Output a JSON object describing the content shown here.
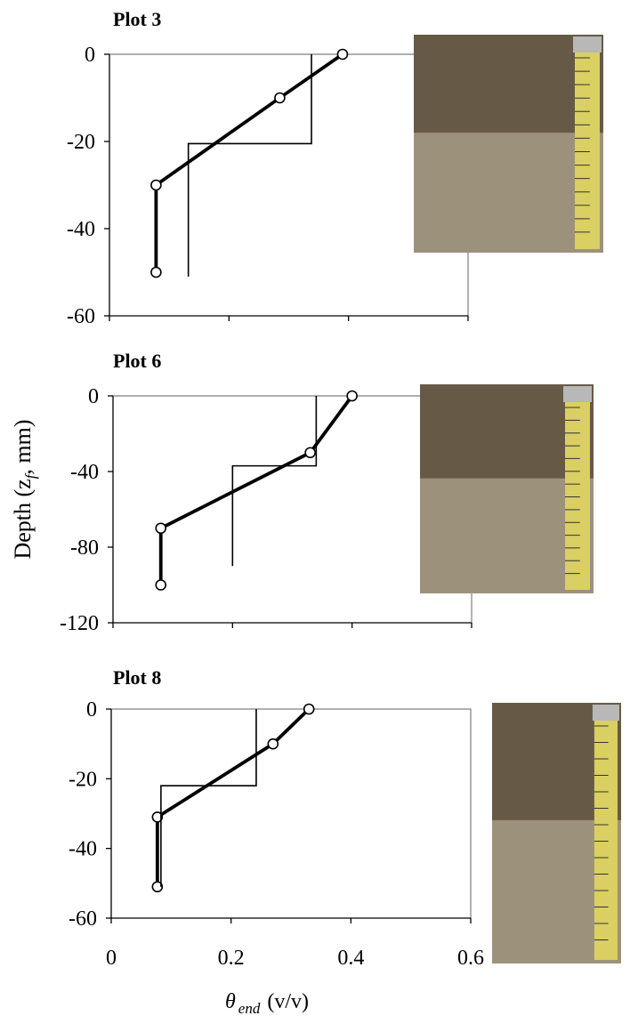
{
  "ylabel_text": "Depth (z",
  "ylabel_sub": "f",
  "ylabel_unit": ", mm)",
  "xlabel_symbol": "θ",
  "xlabel_sub": "end",
  "xlabel_unit": "(v/v)",
  "colors": {
    "line": "#000000",
    "frame": "#7f7f7f",
    "marker_fill": "#ffffff",
    "photo_soil": "#7a6a55",
    "tape": "#d9cf62"
  },
  "chart_data": [
    {
      "type": "line",
      "title": "Plot  3",
      "xlim": [
        0,
        0.6
      ],
      "ylim": [
        -60,
        0
      ],
      "x_ticks": [
        0,
        0.2,
        0.4,
        0.6
      ],
      "y_ticks": [
        0,
        -20,
        -40,
        -60
      ],
      "y_tick_labels": [
        "0",
        "-20",
        "-40",
        "-60"
      ],
      "x_tick_labels": [],
      "series": [
        {
          "style": "thick-markers",
          "points": [
            [
              0.39,
              0
            ],
            [
              0.285,
              -10
            ],
            [
              0.078,
              -30
            ],
            [
              0.078,
              -50
            ]
          ]
        },
        {
          "style": "thin-step",
          "points": [
            [
              0.338,
              0
            ],
            [
              0.338,
              -20.5
            ],
            [
              0.132,
              -20.5
            ],
            [
              0.132,
              -51
            ]
          ]
        }
      ],
      "photo": "soil core photo with measuring tape"
    },
    {
      "type": "line",
      "title": "Plot 6",
      "xlim": [
        0,
        0.6
      ],
      "ylim": [
        -120,
        0
      ],
      "x_ticks": [
        0,
        0.2,
        0.4,
        0.6
      ],
      "y_ticks": [
        0,
        -40,
        -80,
        -120
      ],
      "y_tick_labels": [
        "0",
        "-40",
        "-80",
        "-120"
      ],
      "x_tick_labels": [],
      "series": [
        {
          "style": "thick-markers",
          "points": [
            [
              0.4,
              0
            ],
            [
              0.33,
              -30
            ],
            [
              0.08,
              -70
            ],
            [
              0.08,
              -100
            ]
          ]
        },
        {
          "style": "thin-step",
          "points": [
            [
              0.34,
              0
            ],
            [
              0.34,
              -37
            ],
            [
              0.2,
              -37
            ],
            [
              0.2,
              -90
            ]
          ]
        }
      ],
      "photo": "soil core photo with measuring tape"
    },
    {
      "type": "line",
      "title": "Plot 8",
      "xlim": [
        0,
        0.6
      ],
      "ylim": [
        -60,
        0
      ],
      "x_ticks": [
        0,
        0.2,
        0.4,
        0.6
      ],
      "y_ticks": [
        0,
        -20,
        -40,
        -60
      ],
      "y_tick_labels": [
        "0",
        "-20",
        "-40",
        "-60"
      ],
      "x_tick_labels": [
        "0",
        "0.2",
        "0.4",
        "0.6"
      ],
      "series": [
        {
          "style": "thick-markers",
          "points": [
            [
              0.33,
              0
            ],
            [
              0.27,
              -10
            ],
            [
              0.077,
              -31
            ],
            [
              0.077,
              -51
            ]
          ]
        },
        {
          "style": "thin-step",
          "points": [
            [
              0.242,
              0
            ],
            [
              0.242,
              -22
            ],
            [
              0.083,
              -22
            ],
            [
              0.083,
              -51
            ]
          ]
        }
      ],
      "photo": "soil core photo with measuring tape"
    }
  ]
}
